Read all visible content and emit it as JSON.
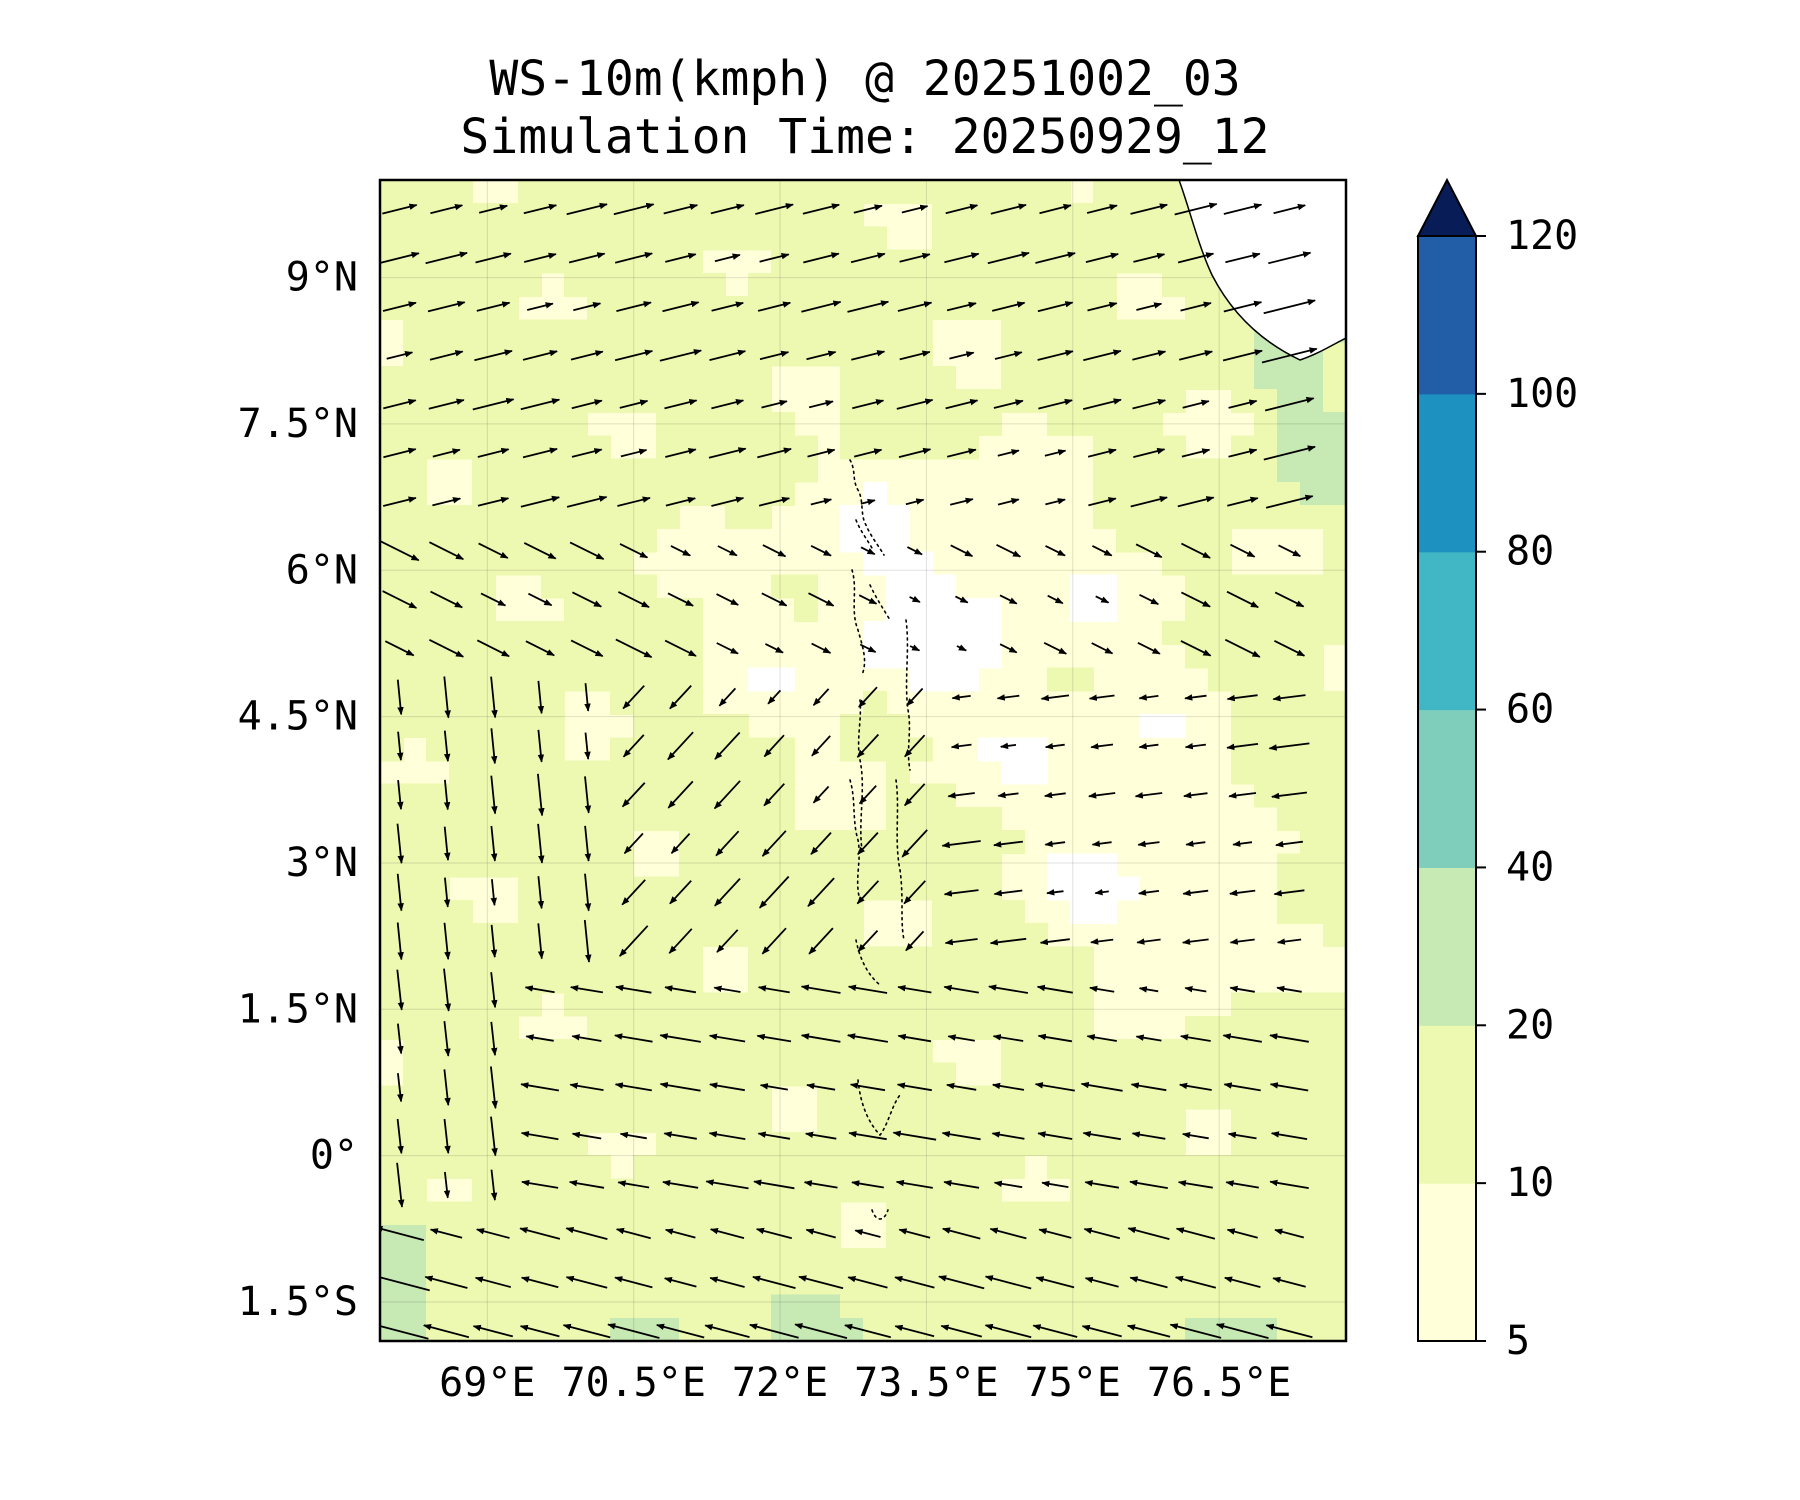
{
  "chart_data": {
    "type": "heatmap",
    "title": "WS-10m(kmph) @ 20251002_03",
    "subtitle": "Simulation Time: 20250929_12",
    "variable": "10 m wind speed (kmph) with wind vectors",
    "lon_range": [
      67.9,
      77.8
    ],
    "lat_range": [
      -1.9,
      10.0
    ],
    "x_ticks": [
      {
        "value": 69.0,
        "label": "69°E"
      },
      {
        "value": 70.5,
        "label": "70.5°E"
      },
      {
        "value": 72.0,
        "label": "72°E"
      },
      {
        "value": 73.5,
        "label": "73.5°E"
      },
      {
        "value": 75.0,
        "label": "75°E"
      },
      {
        "value": 76.5,
        "label": "76.5°E"
      }
    ],
    "y_ticks": [
      {
        "value": 9.0,
        "label": "9°N"
      },
      {
        "value": 7.5,
        "label": "7.5°N"
      },
      {
        "value": 6.0,
        "label": "6°N"
      },
      {
        "value": 4.5,
        "label": "4.5°N"
      },
      {
        "value": 3.0,
        "label": "3°N"
      },
      {
        "value": 1.5,
        "label": "1.5°N"
      },
      {
        "value": 0.0,
        "label": "0°"
      },
      {
        "value": -1.5,
        "label": "1.5°S"
      }
    ],
    "colorbar": {
      "levels": [
        5,
        10,
        20,
        40,
        60,
        80,
        100,
        120
      ],
      "labels": [
        "5",
        "10",
        "20",
        "40",
        "60",
        "80",
        "100",
        "120"
      ],
      "colors": [
        "#ffffd9",
        "#edf8b1",
        "#c7e9b4",
        "#7fcdbb",
        "#41b6c4",
        "#1d91c0",
        "#225ea8",
        "#253494"
      ],
      "extend_color": "#081d58",
      "extend": "max"
    },
    "calm_color": "#ffffff",
    "grid": true
  }
}
